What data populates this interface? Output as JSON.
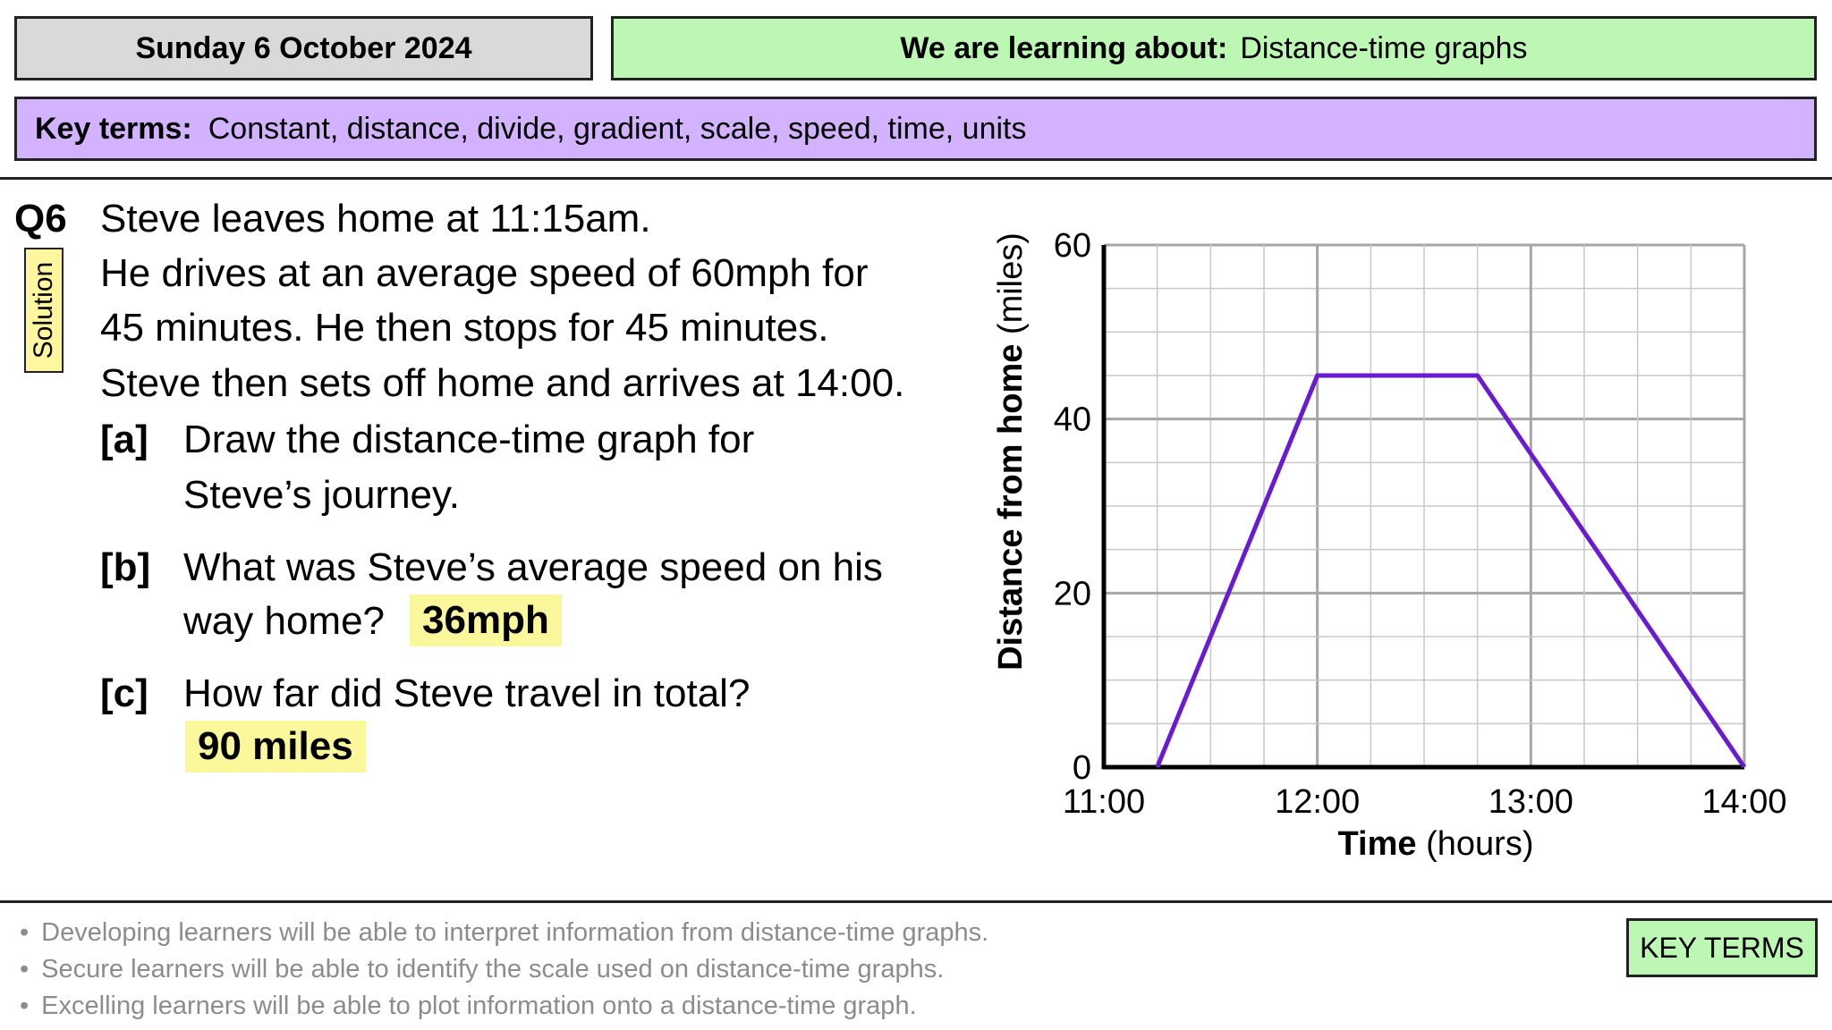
{
  "header": {
    "date": "Sunday 6 October 2024",
    "learning_label": "We are learning about:",
    "learning_topic": "Distance-time graphs",
    "key_terms_label": "Key terms:",
    "key_terms": "Constant, distance, divide, gradient, scale, speed, time, units"
  },
  "question": {
    "number": "Q6",
    "solution_label": "Solution",
    "lines": [
      "Steve leaves home at 11:15am.",
      "He drives at an average speed of 60mph for",
      "45 minutes. He then stops for 45 minutes.",
      "Steve then sets off home and arrives at 14:00."
    ],
    "parts": [
      {
        "label": "[a]",
        "text": [
          "Draw the distance-time graph for",
          "Steve’s journey."
        ]
      },
      {
        "label": "[b]",
        "text": [
          "What was Steve’s average speed on his",
          "way home?"
        ],
        "answer": "36mph"
      },
      {
        "label": "[c]",
        "text": [
          "How far did Steve travel in total?"
        ],
        "answer": "90 miles"
      }
    ]
  },
  "chart_data": {
    "type": "line",
    "xlabel_bold": "Time",
    "xlabel_rest": " (hours)",
    "ylabel_bold": "Distance from home",
    "ylabel_rest": " (miles)",
    "x_ticks": [
      "11:00",
      "12:00",
      "13:00",
      "14:00"
    ],
    "y_ticks": [
      "0",
      "20",
      "40",
      "60"
    ],
    "xlim_hours": [
      11,
      14
    ],
    "ylim": [
      0,
      60
    ],
    "grid": true,
    "series": [
      {
        "x": [
          "11:15",
          "12:00",
          "12:45",
          "14:00"
        ],
        "y": [
          0,
          45,
          45,
          0
        ],
        "color": "#6a1bd1"
      }
    ]
  },
  "objectives": [
    "Developing learners will be able to interpret information from distance-time graphs.",
    "Secure learners will be able to identify the scale used on distance-time graphs.",
    "Excelling learners will be able to plot information onto a distance-time graph."
  ],
  "key_terms_button": "KEY TERMS",
  "colors": {
    "date_bg": "#d9d9d9",
    "learning_bg": "#bdf7b4",
    "key_terms_bg": "#d3b3ff",
    "answer_bg": "#fbf79b",
    "line": "#6a1bd1"
  }
}
